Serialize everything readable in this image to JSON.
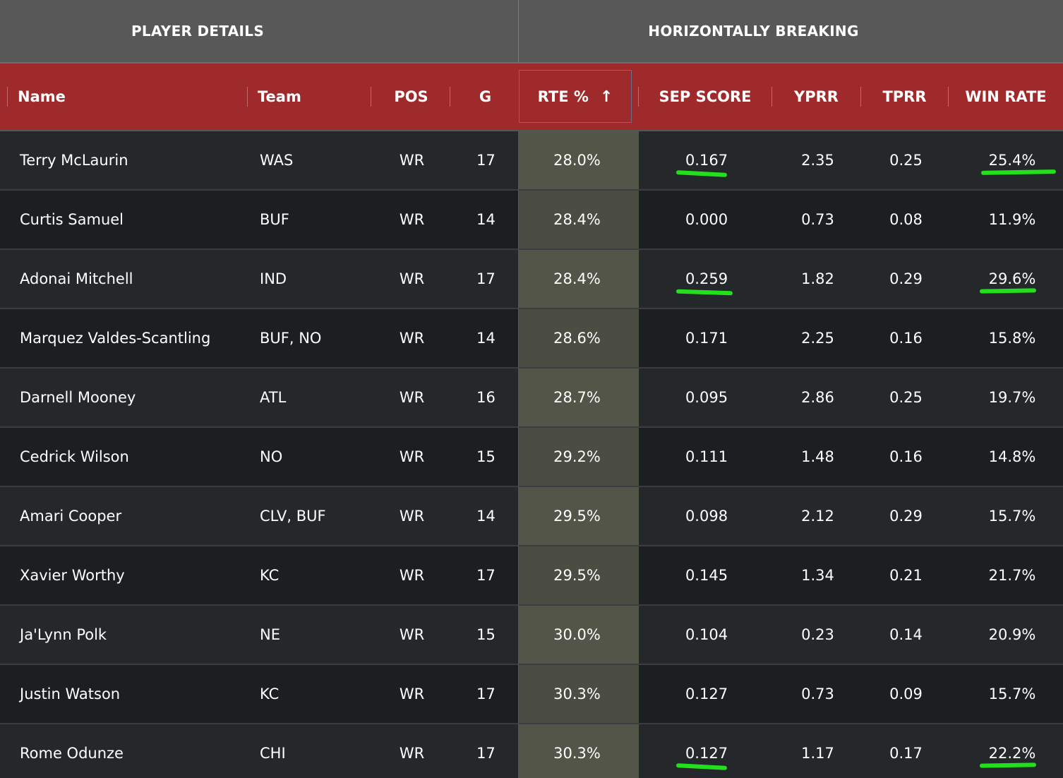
{
  "group_headers": {
    "left": "PLAYER DETAILS",
    "right": "HORIZONTALLY BREAKING"
  },
  "columns": {
    "name": "Name",
    "team": "Team",
    "pos": "POS",
    "g": "G",
    "rte": "RTE %",
    "sort_icon": "↑",
    "sep": "SEP SCORE",
    "yprr": "YPRR",
    "tprr": "TPRR",
    "win": "WIN RATE"
  },
  "rows": [
    {
      "name": "Terry McLaurin",
      "team": "WAS",
      "pos": "WR",
      "g": "17",
      "rte": "28.0%",
      "sep": "0.167",
      "yprr": "2.35",
      "tprr": "0.25",
      "win": "25.4%",
      "sep_marked": true,
      "win_marked": true
    },
    {
      "name": "Curtis Samuel",
      "team": "BUF",
      "pos": "WR",
      "g": "14",
      "rte": "28.4%",
      "sep": "0.000",
      "yprr": "0.73",
      "tprr": "0.08",
      "win": "11.9%",
      "sep_marked": false,
      "win_marked": false
    },
    {
      "name": "Adonai Mitchell",
      "team": "IND",
      "pos": "WR",
      "g": "17",
      "rte": "28.4%",
      "sep": "0.259",
      "yprr": "1.82",
      "tprr": "0.29",
      "win": "29.6%",
      "sep_marked": true,
      "win_marked": true
    },
    {
      "name": "Marquez Valdes-Scantling",
      "team": "BUF, NO",
      "pos": "WR",
      "g": "14",
      "rte": "28.6%",
      "sep": "0.171",
      "yprr": "2.25",
      "tprr": "0.16",
      "win": "15.8%",
      "sep_marked": false,
      "win_marked": false
    },
    {
      "name": "Darnell Mooney",
      "team": "ATL",
      "pos": "WR",
      "g": "16",
      "rte": "28.7%",
      "sep": "0.095",
      "yprr": "2.86",
      "tprr": "0.25",
      "win": "19.7%",
      "sep_marked": false,
      "win_marked": false
    },
    {
      "name": "Cedrick Wilson",
      "team": "NO",
      "pos": "WR",
      "g": "15",
      "rte": "29.2%",
      "sep": "0.111",
      "yprr": "1.48",
      "tprr": "0.16",
      "win": "14.8%",
      "sep_marked": false,
      "win_marked": false
    },
    {
      "name": "Amari Cooper",
      "team": "CLV, BUF",
      "pos": "WR",
      "g": "14",
      "rte": "29.5%",
      "sep": "0.098",
      "yprr": "2.12",
      "tprr": "0.29",
      "win": "15.7%",
      "sep_marked": false,
      "win_marked": false
    },
    {
      "name": "Xavier Worthy",
      "team": "KC",
      "pos": "WR",
      "g": "17",
      "rte": "29.5%",
      "sep": "0.145",
      "yprr": "1.34",
      "tprr": "0.21",
      "win": "21.7%",
      "sep_marked": false,
      "win_marked": false
    },
    {
      "name": "Ja'Lynn Polk",
      "team": "NE",
      "pos": "WR",
      "g": "15",
      "rte": "30.0%",
      "sep": "0.104",
      "yprr": "0.23",
      "tprr": "0.14",
      "win": "20.9%",
      "sep_marked": false,
      "win_marked": false
    },
    {
      "name": "Justin Watson",
      "team": "KC",
      "pos": "WR",
      "g": "17",
      "rte": "30.3%",
      "sep": "0.127",
      "yprr": "0.73",
      "tprr": "0.09",
      "win": "15.7%",
      "sep_marked": false,
      "win_marked": false
    },
    {
      "name": "Rome Odunze",
      "team": "CHI",
      "pos": "WR",
      "g": "17",
      "rte": "30.3%",
      "sep": "0.127",
      "yprr": "1.17",
      "tprr": "0.17",
      "win": "22.2%",
      "sep_marked": true,
      "win_marked": true
    }
  ],
  "colors": {
    "header_red": "#9e2a2b",
    "group_header_gray": "#585858",
    "highlight_green": "#22e01c"
  }
}
